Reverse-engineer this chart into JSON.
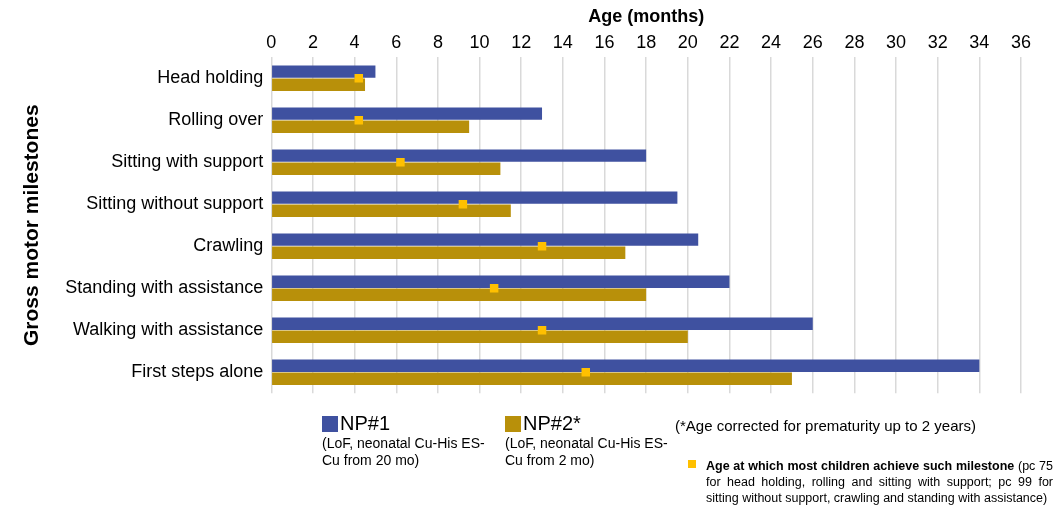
{
  "chart_data": {
    "type": "bar",
    "orientation": "horizontal",
    "xlabel": "Age (months)",
    "ylabel": "Gross motor milestones",
    "categories": [
      "Head holding",
      "Rolling over",
      "Sitting with support",
      "Sitting without support",
      "Crawling",
      "Standing with assistance",
      "Walking with assistance",
      "First steps alone"
    ],
    "series": [
      {
        "name": "NP#1",
        "color": "#3f51a0",
        "values": [
          5,
          13,
          18,
          19.5,
          20.5,
          22,
          26,
          34
        ]
      },
      {
        "name": "NP#2*",
        "color": "#b8900a",
        "values": [
          4.5,
          9.5,
          11,
          11.5,
          17,
          18,
          20,
          25
        ]
      },
      {
        "name": "Age at which most children achieve such milestone",
        "type": "scatter",
        "color": "#ffc000",
        "marker": "square",
        "values": [
          4.2,
          4.2,
          6.2,
          9.2,
          13,
          10.7,
          13,
          15.1
        ]
      }
    ],
    "xlim": [
      0,
      36
    ],
    "xticks": [
      0,
      2,
      4,
      6,
      8,
      10,
      12,
      14,
      16,
      18,
      20,
      22,
      24,
      26,
      28,
      30,
      32,
      34,
      36
    ],
    "grid": "x",
    "legend": "bottom",
    "annotations": [
      "(LoF, neonatal Cu-His ES-Cu from 20 mo)",
      "(LoF, neonatal Cu-His ES-Cu from 2 mo)",
      "(*Age corrected for prematurity up to 2 years)",
      "(pc 75 for head holding, rolling and sitting with support; pc 99 for sitting without support, crawling and standing with assistance)"
    ]
  }
}
